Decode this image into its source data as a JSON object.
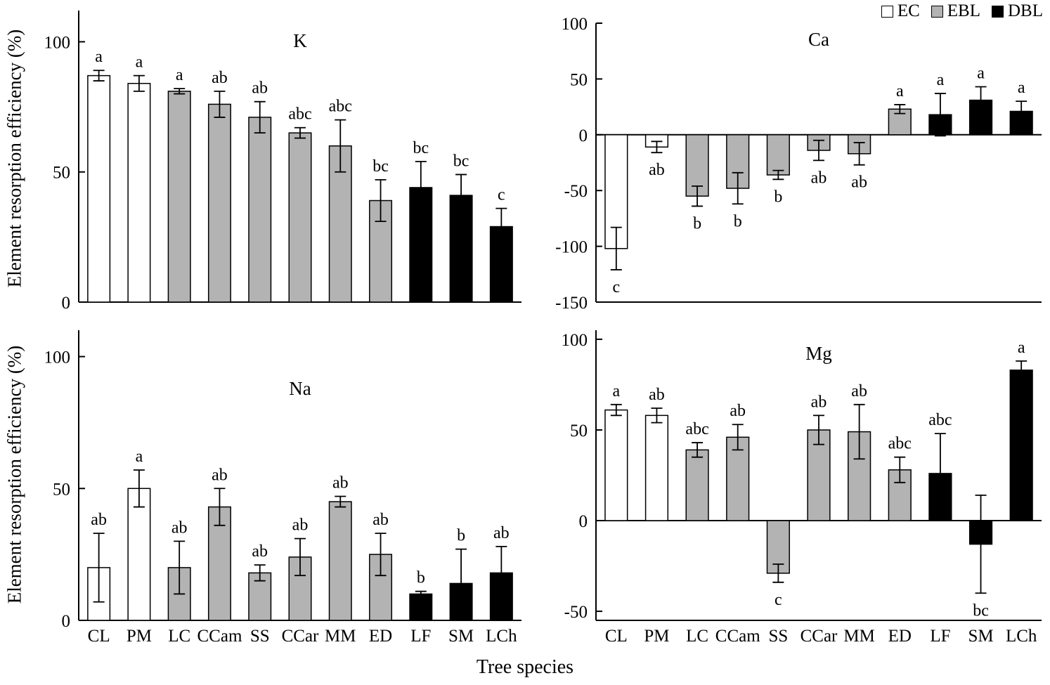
{
  "figure": {
    "ylabel": "Element resorption efficiency (%)",
    "xlabel": "Tree species",
    "background": "#ffffff",
    "axis_color": "#000000"
  },
  "legend": {
    "position": "top-right",
    "items": [
      {
        "label": "EC",
        "fill": "#ffffff",
        "stroke": "#000000"
      },
      {
        "label": "EBL",
        "fill": "#b3b3b3",
        "stroke": "#000000"
      },
      {
        "label": "DBL",
        "fill": "#000000",
        "stroke": "#000000"
      }
    ]
  },
  "chart_data": [
    {
      "type": "bar",
      "title": "K",
      "ylabel": "Element resorption efficiency (%)",
      "categories": [
        "CL",
        "PM",
        "LC",
        "CCam",
        "SS",
        "CCar",
        "MM",
        "ED",
        "LF",
        "SM",
        "LCh"
      ],
      "series_group": [
        "EC",
        "EC",
        "EBL",
        "EBL",
        "EBL",
        "EBL",
        "EBL",
        "EBL",
        "DBL",
        "DBL",
        "DBL"
      ],
      "values": [
        87,
        84,
        81,
        76,
        71,
        65,
        60,
        39,
        44,
        41,
        29
      ],
      "errors": [
        2,
        3,
        1,
        5,
        6,
        2,
        10,
        8,
        10,
        8,
        7
      ],
      "sig_labels": [
        "a",
        "a",
        "a",
        "ab",
        "ab",
        "abc",
        "abc",
        "bc",
        "bc",
        "bc",
        "c"
      ],
      "ylim": [
        0,
        112
      ],
      "yticks": [
        0,
        50,
        100
      ],
      "grid": false,
      "show_x_tick_labels": false
    },
    {
      "type": "bar",
      "title": "Ca",
      "ylabel": "Element resorption efficiency (%)",
      "categories": [
        "CL",
        "PM",
        "LC",
        "CCam",
        "SS",
        "CCar",
        "MM",
        "ED",
        "LF",
        "SM",
        "LCh"
      ],
      "series_group": [
        "EC",
        "EC",
        "EBL",
        "EBL",
        "EBL",
        "EBL",
        "EBL",
        "EBL",
        "DBL",
        "DBL",
        "DBL"
      ],
      "values": [
        -102,
        -11,
        -55,
        -48,
        -36,
        -14,
        -17,
        23,
        18,
        31,
        21
      ],
      "errors": [
        19,
        5,
        9,
        14,
        4,
        9,
        10,
        4,
        19,
        12,
        9
      ],
      "sig_labels": [
        "c",
        "ab",
        "b",
        "b",
        "b",
        "ab",
        "ab",
        "a",
        "a",
        "a",
        "a"
      ],
      "ylim": [
        -150,
        100
      ],
      "yticks": [
        -150,
        -100,
        -50,
        0,
        50,
        100
      ],
      "grid": false,
      "show_x_tick_labels": false
    },
    {
      "type": "bar",
      "title": "Na",
      "ylabel": "Element resorption efficiency (%)",
      "categories": [
        "CL",
        "PM",
        "LC",
        "CCam",
        "SS",
        "CCar",
        "MM",
        "ED",
        "LF",
        "SM",
        "LCh"
      ],
      "series_group": [
        "EC",
        "EC",
        "EBL",
        "EBL",
        "EBL",
        "EBL",
        "EBL",
        "EBL",
        "DBL",
        "DBL",
        "DBL"
      ],
      "values": [
        20,
        50,
        20,
        43,
        18,
        24,
        45,
        25,
        10,
        14,
        18
      ],
      "errors": [
        13,
        7,
        10,
        7,
        3,
        7,
        2,
        8,
        1,
        13,
        10
      ],
      "sig_labels": [
        "ab",
        "a",
        "ab",
        "ab",
        "ab",
        "ab",
        "ab",
        "ab",
        "b",
        "b",
        "ab"
      ],
      "ylim": [
        0,
        110
      ],
      "yticks": [
        0,
        50,
        100
      ],
      "grid": false,
      "show_x_tick_labels": true
    },
    {
      "type": "bar",
      "title": "Mg",
      "ylabel": "Element resorption efficiency (%)",
      "categories": [
        "CL",
        "PM",
        "LC",
        "CCam",
        "SS",
        "CCar",
        "MM",
        "ED",
        "LF",
        "SM",
        "LCh"
      ],
      "series_group": [
        "EC",
        "EC",
        "EBL",
        "EBL",
        "EBL",
        "EBL",
        "EBL",
        "EBL",
        "DBL",
        "DBL",
        "DBL"
      ],
      "values": [
        61,
        58,
        39,
        46,
        -29,
        50,
        49,
        28,
        26,
        -13,
        83
      ],
      "errors": [
        3,
        4,
        4,
        7,
        5,
        8,
        15,
        7,
        22,
        27,
        5
      ],
      "sig_labels": [
        "a",
        "ab",
        "abc",
        "ab",
        "c",
        "ab",
        "ab",
        "abc",
        "abc",
        "bc",
        "a"
      ],
      "ylim": [
        -55,
        105
      ],
      "yticks": [
        -50,
        0,
        50,
        100
      ],
      "grid": false,
      "show_x_tick_labels": true
    }
  ]
}
